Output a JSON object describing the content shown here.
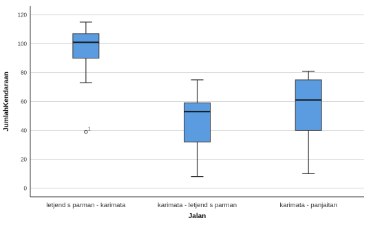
{
  "chart_data": {
    "type": "boxplot",
    "xlabel": "Jalan",
    "ylabel": "JumlahKendaraan",
    "ylim": [
      -6,
      126
    ],
    "yticks": [
      0,
      20,
      40,
      60,
      80,
      100,
      120
    ],
    "grid": "horizontal",
    "box_color": "#5b9be0",
    "box_edge_color": "#3a3a3a",
    "categories": [
      "letjend s parman - karimata",
      "karimata - letjend s parman",
      "karimata - panjaitan"
    ],
    "boxes": [
      {
        "category": "letjend s parman - karimata",
        "whisker_low": 73,
        "q1": 90,
        "median": 101,
        "q3": 107,
        "whisker_high": 115,
        "outliers": [
          {
            "value": 39,
            "label": "1"
          }
        ]
      },
      {
        "category": "karimata - letjend s parman",
        "whisker_low": 8,
        "q1": 32,
        "median": 53,
        "q3": 59,
        "whisker_high": 75,
        "outliers": []
      },
      {
        "category": "karimata - panjaitan",
        "whisker_low": 10,
        "q1": 40,
        "median": 61,
        "q3": 75,
        "whisker_high": 81,
        "outliers": []
      }
    ]
  }
}
